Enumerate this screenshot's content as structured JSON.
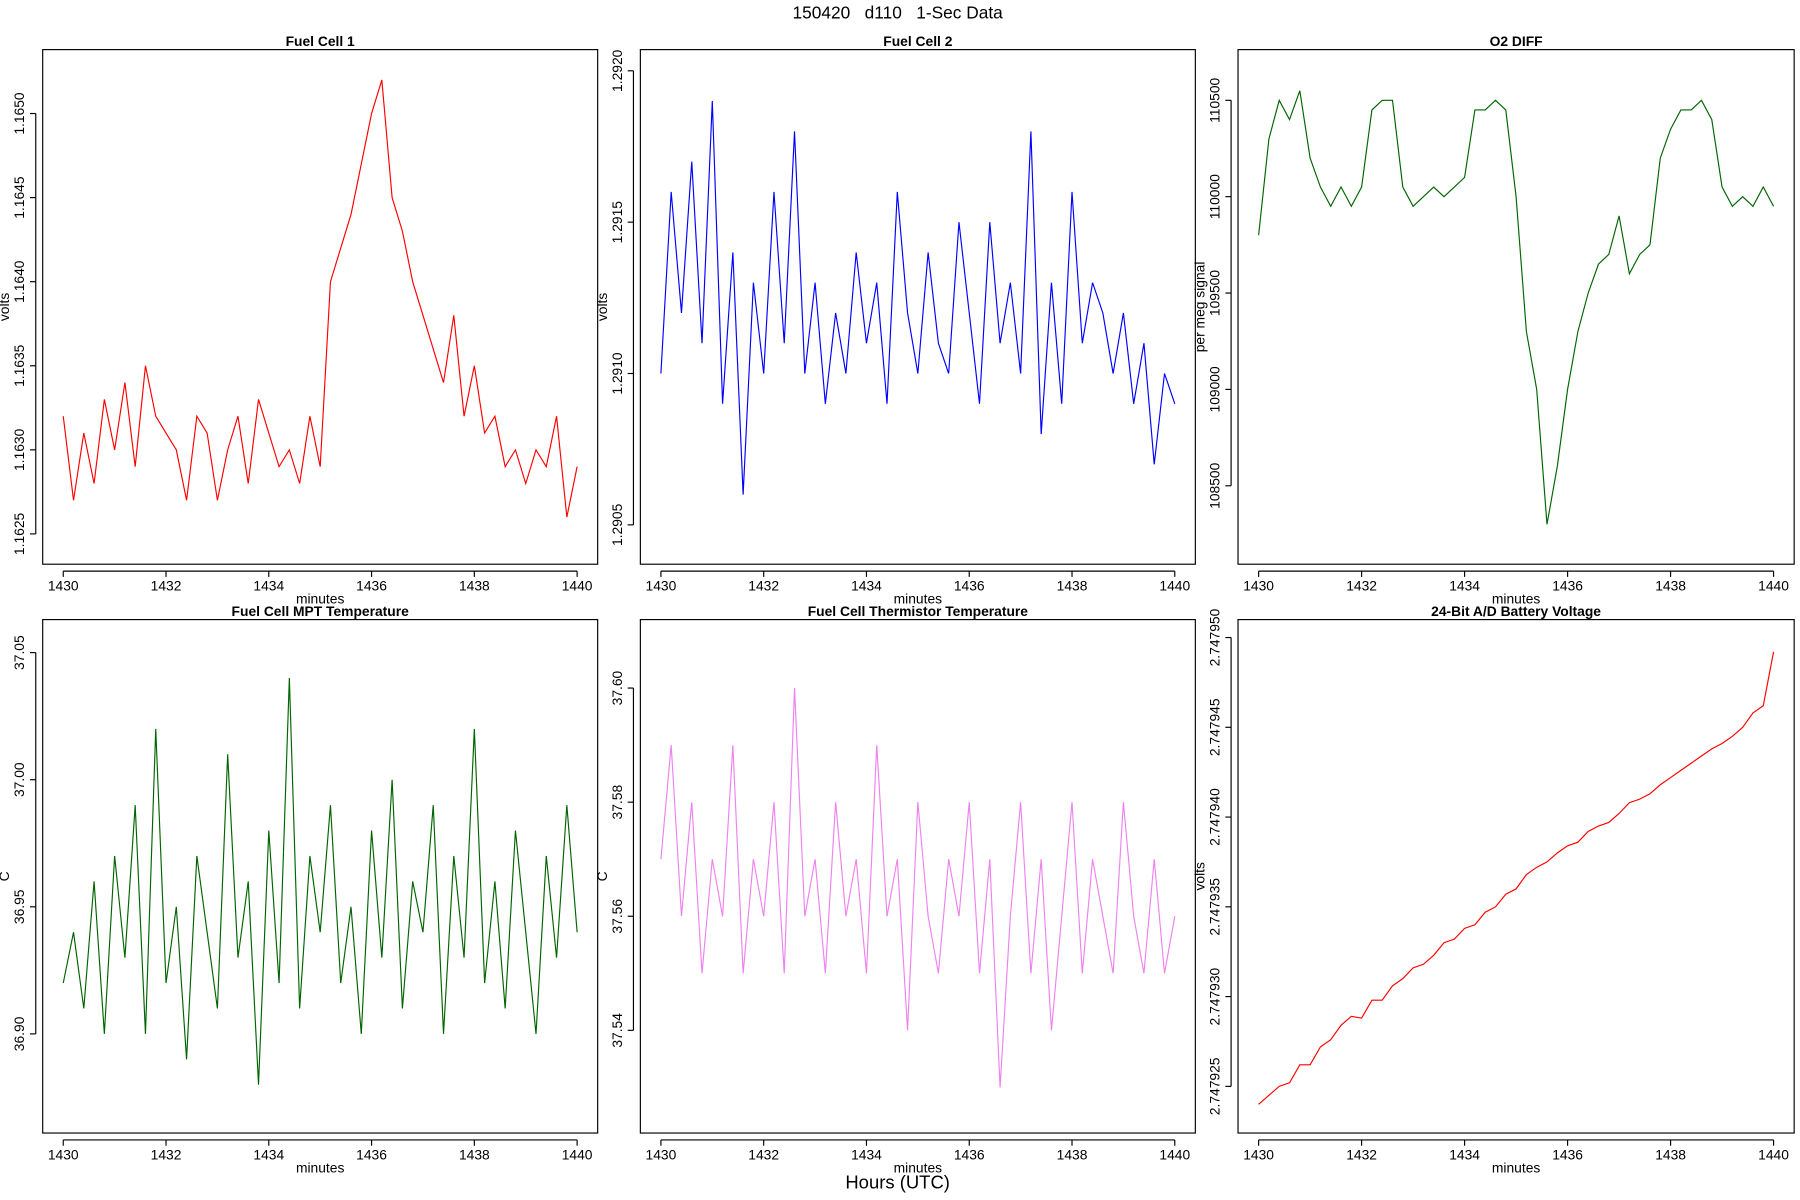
{
  "title": "150420   d110   1-Sec Data",
  "xlabel": "Hours (UTC)",
  "chart_data": [
    {
      "type": "line",
      "title": "Fuel Cell 1",
      "xlabel": "minutes",
      "ylabel": "volts",
      "color": "#ff0000",
      "x": [
        1430,
        1430.2,
        1430.4,
        1430.6,
        1430.8,
        1431,
        1431.2,
        1431.4,
        1431.6,
        1431.8,
        1432,
        1432.2,
        1432.4,
        1432.6,
        1432.8,
        1433,
        1433.2,
        1433.4,
        1433.6,
        1433.8,
        1434,
        1434.2,
        1434.4,
        1434.6,
        1434.8,
        1435,
        1435.2,
        1435.4,
        1435.6,
        1435.8,
        1436,
        1436.2,
        1436.4,
        1436.6,
        1436.8,
        1437,
        1437.2,
        1437.4,
        1437.6,
        1437.8,
        1438,
        1438.2,
        1438.4,
        1438.6,
        1438.8,
        1439,
        1439.2,
        1439.4,
        1439.6,
        1439.8,
        1440
      ],
      "values": [
        1.1632,
        1.1627,
        1.1631,
        1.1628,
        1.1633,
        1.163,
        1.1634,
        1.1629,
        1.1635,
        1.1632,
        1.1631,
        1.163,
        1.1627,
        1.1632,
        1.1631,
        1.1627,
        1.163,
        1.1632,
        1.1628,
        1.1633,
        1.1631,
        1.1629,
        1.163,
        1.1628,
        1.1632,
        1.1629,
        1.164,
        1.1642,
        1.1644,
        1.1647,
        1.165,
        1.1652,
        1.1645,
        1.1643,
        1.164,
        1.1638,
        1.1636,
        1.1634,
        1.1638,
        1.1632,
        1.1635,
        1.1631,
        1.1632,
        1.1629,
        1.163,
        1.1628,
        1.163,
        1.1629,
        1.1632,
        1.1626,
        1.1629
      ],
      "xlim": [
        1429.6,
        1440.4
      ],
      "xticks": [
        1430,
        1432,
        1434,
        1436,
        1438,
        1440
      ],
      "ylim": [
        1.16232,
        1.16538
      ],
      "yticks": [
        1.1625,
        {
          "value": 1.163,
          "label": "1.1630"
        },
        1.1635,
        {
          "value": 1.164,
          "label": "1.1640"
        },
        1.1645,
        {
          "value": 1.165,
          "label": "1.1650"
        }
      ]
    },
    {
      "type": "line",
      "title": "Fuel Cell 2",
      "xlabel": "minutes",
      "ylabel": "volts",
      "color": "#0000ff",
      "x": [
        1430,
        1430.2,
        1430.4,
        1430.6,
        1430.8,
        1431,
        1431.2,
        1431.4,
        1431.6,
        1431.8,
        1432,
        1432.2,
        1432.4,
        1432.6,
        1432.8,
        1433,
        1433.2,
        1433.4,
        1433.6,
        1433.8,
        1434,
        1434.2,
        1434.4,
        1434.6,
        1434.8,
        1435,
        1435.2,
        1435.4,
        1435.6,
        1435.8,
        1436,
        1436.2,
        1436.4,
        1436.6,
        1436.8,
        1437,
        1437.2,
        1437.4,
        1437.6,
        1437.8,
        1438,
        1438.2,
        1438.4,
        1438.6,
        1438.8,
        1439,
        1439.2,
        1439.4,
        1439.6,
        1439.8,
        1440
      ],
      "values": [
        1.291,
        1.2916,
        1.2912,
        1.2917,
        1.2911,
        1.2919,
        1.2909,
        1.2914,
        1.2906,
        1.2913,
        1.291,
        1.2916,
        1.2911,
        1.2918,
        1.291,
        1.2913,
        1.2909,
        1.2912,
        1.291,
        1.2914,
        1.2911,
        1.2913,
        1.2909,
        1.2916,
        1.2912,
        1.291,
        1.2914,
        1.2911,
        1.291,
        1.2915,
        1.2912,
        1.2909,
        1.2915,
        1.2911,
        1.2913,
        1.291,
        1.2918,
        1.2908,
        1.2913,
        1.2909,
        1.2916,
        1.2911,
        1.2913,
        1.2912,
        1.291,
        1.2912,
        1.2909,
        1.2911,
        1.2907,
        1.291,
        1.2909
      ],
      "xlim": [
        1429.6,
        1440.4
      ],
      "xticks": [
        1430,
        1432,
        1434,
        1436,
        1438,
        1440
      ],
      "ylim": [
        1.29037,
        1.29207
      ],
      "yticks": [
        1.2905,
        {
          "value": 1.291,
          "label": "1.2910"
        },
        1.2915,
        {
          "value": 1.292,
          "label": "1.2920"
        }
      ]
    },
    {
      "type": "line",
      "title": "O2 DIFF",
      "xlabel": "minutes",
      "ylabel": "per meg signal",
      "color": "#006400",
      "x": [
        1430,
        1430.2,
        1430.4,
        1430.6,
        1430.8,
        1431,
        1431.2,
        1431.4,
        1431.6,
        1431.8,
        1432,
        1432.2,
        1432.4,
        1432.6,
        1432.8,
        1433,
        1433.2,
        1433.4,
        1433.6,
        1433.8,
        1434,
        1434.2,
        1434.4,
        1434.6,
        1434.8,
        1435,
        1435.2,
        1435.4,
        1435.6,
        1435.8,
        1436,
        1436.2,
        1436.4,
        1436.6,
        1436.8,
        1437,
        1437.2,
        1437.4,
        1437.6,
        1437.8,
        1438,
        1438.2,
        1438.4,
        1438.6,
        1438.8,
        1439,
        1439.2,
        1439.4,
        1439.6,
        1439.8,
        1440
      ],
      "values": [
        109800,
        110300,
        110500,
        110400,
        110550,
        110200,
        110050,
        109950,
        110050,
        109950,
        110050,
        110450,
        110500,
        110500,
        110050,
        109950,
        110000,
        110050,
        110000,
        110050,
        110100,
        110450,
        110450,
        110500,
        110450,
        110000,
        109300,
        109000,
        108300,
        108600,
        109000,
        109300,
        109500,
        109650,
        109700,
        109900,
        109600,
        109700,
        109750,
        110200,
        110350,
        110450,
        110450,
        110500,
        110400,
        110050,
        109950,
        110000,
        109950,
        110050,
        109950
      ],
      "xlim": [
        1429.6,
        1440.4
      ],
      "xticks": [
        1430,
        1432,
        1434,
        1436,
        1438,
        1440
      ],
      "ylim": [
        108093,
        110763
      ],
      "yticks": [
        108500,
        109000,
        109500,
        110000,
        110500
      ]
    },
    {
      "type": "line",
      "title": "Fuel Cell MPT Temperature",
      "xlabel": "minutes",
      "ylabel": "C",
      "color": "#006400",
      "x": [
        1430,
        1430.2,
        1430.4,
        1430.6,
        1430.8,
        1431,
        1431.2,
        1431.4,
        1431.6,
        1431.8,
        1432,
        1432.2,
        1432.4,
        1432.6,
        1432.8,
        1433,
        1433.2,
        1433.4,
        1433.6,
        1433.8,
        1434,
        1434.2,
        1434.4,
        1434.6,
        1434.8,
        1435,
        1435.2,
        1435.4,
        1435.6,
        1435.8,
        1436,
        1436.2,
        1436.4,
        1436.6,
        1436.8,
        1437,
        1437.2,
        1437.4,
        1437.6,
        1437.8,
        1438,
        1438.2,
        1438.4,
        1438.6,
        1438.8,
        1439,
        1439.2,
        1439.4,
        1439.6,
        1439.8,
        1440
      ],
      "values": [
        36.92,
        36.94,
        36.91,
        36.96,
        36.9,
        36.97,
        36.93,
        36.99,
        36.9,
        37.02,
        36.92,
        36.95,
        36.89,
        36.97,
        36.94,
        36.91,
        37.01,
        36.93,
        36.96,
        36.88,
        36.98,
        36.92,
        37.04,
        36.91,
        36.97,
        36.94,
        36.99,
        36.92,
        36.95,
        36.9,
        36.98,
        36.93,
        37.0,
        36.91,
        36.96,
        36.94,
        36.99,
        36.9,
        36.97,
        36.93,
        37.02,
        36.92,
        36.96,
        36.91,
        36.98,
        36.94,
        36.9,
        36.97,
        36.93,
        36.99,
        36.94
      ],
      "xlim": [
        1429.6,
        1440.4
      ],
      "xticks": [
        1430,
        1432,
        1434,
        1436,
        1438,
        1440
      ],
      "ylim": [
        36.861,
        37.063
      ],
      "yticks": [
        {
          "value": 36.9,
          "label": "36.90"
        },
        36.95,
        {
          "value": 37,
          "label": "37.00"
        },
        37.05
      ]
    },
    {
      "type": "line",
      "title": "Fuel Cell Thermistor Temperature",
      "xlabel": "minutes",
      "ylabel": "C",
      "color": "#ee82ee",
      "x": [
        1430,
        1430.2,
        1430.4,
        1430.6,
        1430.8,
        1431,
        1431.2,
        1431.4,
        1431.6,
        1431.8,
        1432,
        1432.2,
        1432.4,
        1432.6,
        1432.8,
        1433,
        1433.2,
        1433.4,
        1433.6,
        1433.8,
        1434,
        1434.2,
        1434.4,
        1434.6,
        1434.8,
        1435,
        1435.2,
        1435.4,
        1435.6,
        1435.8,
        1436,
        1436.2,
        1436.4,
        1436.6,
        1436.8,
        1437,
        1437.2,
        1437.4,
        1437.6,
        1437.8,
        1438,
        1438.2,
        1438.4,
        1438.6,
        1438.8,
        1439,
        1439.2,
        1439.4,
        1439.6,
        1439.8,
        1440
      ],
      "values": [
        37.57,
        37.59,
        37.56,
        37.58,
        37.55,
        37.57,
        37.56,
        37.59,
        37.55,
        37.57,
        37.56,
        37.58,
        37.55,
        37.6,
        37.56,
        37.57,
        37.55,
        37.58,
        37.56,
        37.57,
        37.55,
        37.59,
        37.56,
        37.57,
        37.54,
        37.58,
        37.56,
        37.55,
        37.57,
        37.56,
        37.58,
        37.55,
        37.57,
        37.53,
        37.56,
        37.58,
        37.55,
        37.57,
        37.54,
        37.56,
        37.58,
        37.55,
        37.57,
        37.56,
        37.55,
        37.58,
        37.56,
        37.55,
        37.57,
        37.55,
        37.56
      ],
      "xlim": [
        1429.6,
        1440.4
      ],
      "xticks": [
        1430,
        1432,
        1434,
        1436,
        1438,
        1440
      ],
      "ylim": [
        37.522,
        37.612
      ],
      "yticks": [
        37.54,
        37.56,
        37.58,
        {
          "value": 37.6,
          "label": "37.60"
        }
      ]
    },
    {
      "type": "line",
      "title": "24-Bit A/D Battery Voltage",
      "xlabel": "minutes",
      "ylabel": "volts",
      "color": "#ff0000",
      "x": [
        1430,
        1430.2,
        1430.4,
        1430.6,
        1430.8,
        1431,
        1431.2,
        1431.4,
        1431.6,
        1431.8,
        1432,
        1432.2,
        1432.4,
        1432.6,
        1432.8,
        1433,
        1433.2,
        1433.4,
        1433.6,
        1433.8,
        1434,
        1434.2,
        1434.4,
        1434.6,
        1434.8,
        1435,
        1435.2,
        1435.4,
        1435.6,
        1435.8,
        1436,
        1436.2,
        1436.4,
        1436.6,
        1436.8,
        1437,
        1437.2,
        1437.4,
        1437.6,
        1437.8,
        1438,
        1438.2,
        1438.4,
        1438.6,
        1438.8,
        1439,
        1439.2,
        1439.4,
        1439.6,
        1439.8,
        1440
      ],
      "values": [
        2.747924,
        2.7479245,
        2.747925,
        2.7479252,
        2.7479262,
        2.7479262,
        2.7479272,
        2.7479276,
        2.7479284,
        2.7479289,
        2.7479288,
        2.7479298,
        2.7479298,
        2.7479306,
        2.747931,
        2.7479316,
        2.7479318,
        2.7479323,
        2.747933,
        2.7479332,
        2.7479338,
        2.747934,
        2.7479347,
        2.747935,
        2.7479357,
        2.747936,
        2.7479368,
        2.7479372,
        2.7479375,
        2.747938,
        2.7479384,
        2.7479386,
        2.7479392,
        2.7479395,
        2.7479397,
        2.7479402,
        2.7479408,
        2.747941,
        2.7479413,
        2.7479418,
        2.7479422,
        2.7479426,
        2.747943,
        2.7479434,
        2.7479438,
        2.7479441,
        2.7479445,
        2.747945,
        2.7479458,
        2.7479462,
        2.7479492
      ],
      "xlim": [
        1429.6,
        1440.4
      ],
      "xticks": [
        1430,
        1432,
        1434,
        1436,
        1438,
        1440
      ],
      "ylim": [
        2.7479224,
        2.747951
      ],
      "yticks": [
        2.747925,
        {
          "value": 2.74793,
          "label": "2.747930"
        },
        2.747935,
        {
          "value": 2.74794,
          "label": "2.747940"
        },
        2.747945,
        {
          "value": 2.74795,
          "label": "2.747950"
        }
      ]
    }
  ]
}
